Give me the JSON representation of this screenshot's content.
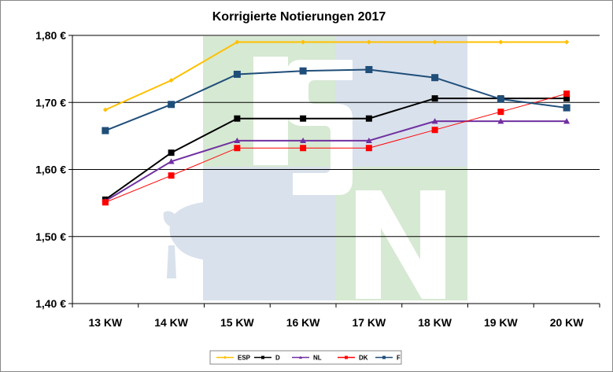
{
  "chart_data": {
    "type": "line",
    "title": "Korrigierte Notierungen 2017",
    "xlabel": "",
    "ylabel": "",
    "categories": [
      "13 KW",
      "14 KW",
      "15 KW",
      "16 KW",
      "17 KW",
      "18 KW",
      "19 KW",
      "20 KW"
    ],
    "ylim": [
      1.4,
      1.8
    ],
    "yticks": [
      1.4,
      1.5,
      1.6,
      1.7,
      1.8
    ],
    "ytick_labels": [
      "1,40 €",
      "1,50 €",
      "1,60 €",
      "1,70 €",
      "1,80 €"
    ],
    "grid": true,
    "legend_position": "bottom",
    "series": [
      {
        "name": "ESP",
        "color": "#FFC000",
        "marker": "diamond",
        "values": [
          1.689,
          1.733,
          1.79,
          1.79,
          1.79,
          1.79,
          1.79,
          1.79
        ]
      },
      {
        "name": "D",
        "color": "#000000",
        "marker": "square",
        "values": [
          1.555,
          1.625,
          1.676,
          1.676,
          1.676,
          1.706,
          1.706,
          1.706
        ]
      },
      {
        "name": "NL",
        "color": "#7030A0",
        "marker": "triangle",
        "values": [
          1.553,
          1.612,
          1.643,
          1.643,
          1.643,
          1.672,
          1.672,
          1.672
        ]
      },
      {
        "name": "DK",
        "color": "#FF0000",
        "marker": "square",
        "values": [
          1.551,
          1.591,
          1.632,
          1.632,
          1.632,
          1.659,
          1.686,
          1.713
        ]
      },
      {
        "name": "F",
        "color": "#1F4E79",
        "marker": "square",
        "values": [
          1.658,
          1.697,
          1.742,
          1.747,
          1.749,
          1.737,
          1.705,
          1.692
        ]
      }
    ],
    "watermark": {
      "letters": [
        "I",
        "S",
        "N"
      ],
      "colors": {
        "green": "#D6E9D2",
        "blue": "#D9E1EC",
        "letter": "#FFFFFF",
        "pig": "#D9E1EC"
      }
    }
  }
}
